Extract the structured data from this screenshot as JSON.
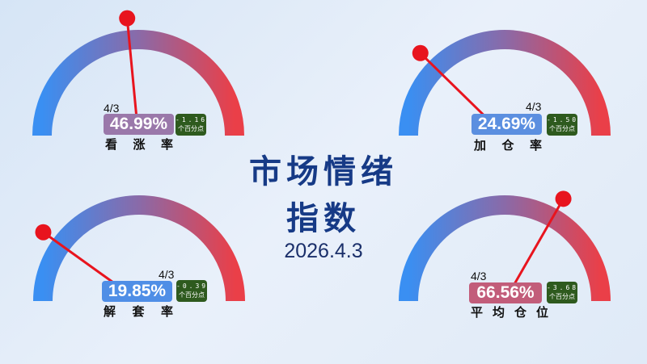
{
  "title_line1": "市场情绪",
  "title_line2": "指数",
  "date": "2026.4.3",
  "colors": {
    "gauge_start": "#3a8ff2",
    "gauge_mid": "#8a6aa8",
    "gauge_end": "#ea3f48",
    "needle": "#e8141e",
    "change_bg": "#2e5a1e",
    "title": "#163a86"
  },
  "gauges": [
    {
      "label": "看涨率",
      "date": "4/3",
      "value": 46.99,
      "value_text": "46.99%",
      "change": "-1.16",
      "change_unit": "个百分点",
      "box_color": "#9a78aa"
    },
    {
      "label": "加仓率",
      "date": "4/3",
      "value": 24.69,
      "value_text": "24.69%",
      "change": "-1.50",
      "change_unit": "个百分点",
      "box_color": "#5b8fe0"
    },
    {
      "label": "解套率",
      "date": "4/3",
      "value": 19.85,
      "value_text": "19.85%",
      "change": "-0.39",
      "change_unit": "个百分点",
      "box_color": "#4f8ee6"
    },
    {
      "label": "平均仓位",
      "date": "4/3",
      "value": 66.56,
      "value_text": "66.56%",
      "change": "-3.68",
      "change_unit": "个百分点",
      "box_color": "#c25d7a"
    }
  ]
}
